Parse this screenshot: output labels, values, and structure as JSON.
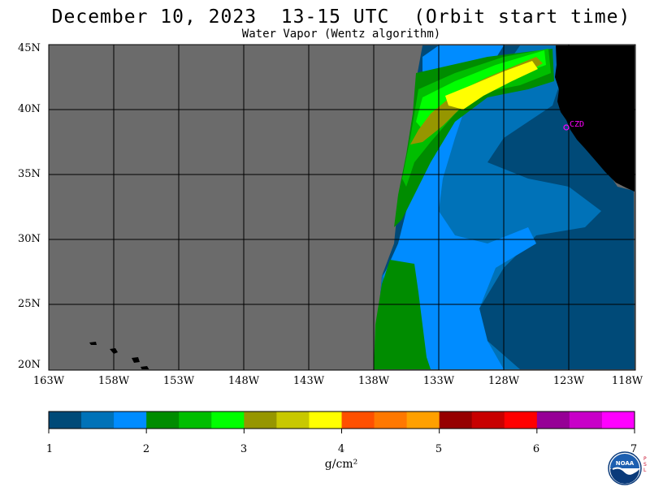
{
  "header": {
    "title": "December 10, 2023  13-15 UTC  (Orbit start time)",
    "subtitle": "Water Vapor (Wentz algorithm)"
  },
  "map": {
    "lat_labels": [
      "45N",
      "40N",
      "35N",
      "30N",
      "25N",
      "20N"
    ],
    "lon_labels": [
      "163W",
      "158W",
      "153W",
      "148W",
      "143W",
      "138W",
      "133W",
      "128W",
      "123W",
      "118W"
    ],
    "station_label": "CZD",
    "no_data_color": "#6b6b6b",
    "land_color": "#000000",
    "station_color": "#ff00ff"
  },
  "colorbar": {
    "colors": [
      "#004a78",
      "#0072b8",
      "#008cff",
      "#008c00",
      "#00be00",
      "#00ff00",
      "#969600",
      "#c8c800",
      "#ffff00",
      "#ff5000",
      "#ff7800",
      "#ffa000",
      "#960000",
      "#c80000",
      "#ff0000",
      "#960096",
      "#c800c8",
      "#ff00ff"
    ],
    "tick_labels": [
      "1",
      "2",
      "3",
      "4",
      "5",
      "6",
      "7"
    ],
    "units": "g/cm²"
  },
  "logo": {
    "name": "noaa-logo",
    "text": "NOAA",
    "side_text": "PSL"
  }
}
